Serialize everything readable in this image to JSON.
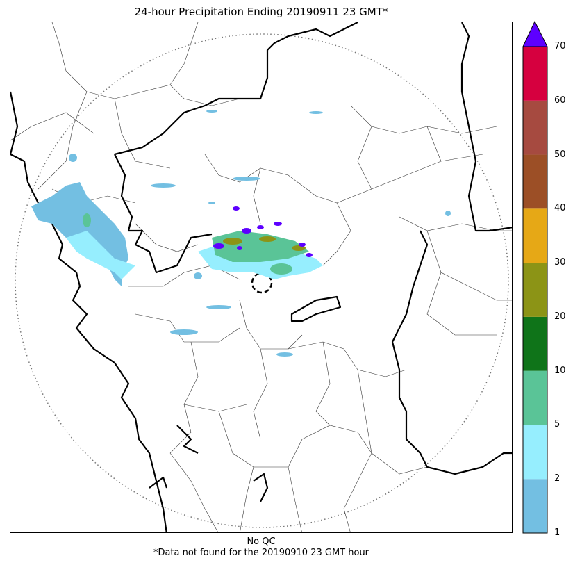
{
  "title": "24-hour Precipitation Ending 20190911 23 GMT*",
  "captions": {
    "qc": "No QC",
    "note": "*Data not found for the 20190910 23 GMT hour"
  },
  "colorbar": {
    "levels": [
      1,
      2,
      5,
      10,
      20,
      30,
      40,
      50,
      60,
      70
    ],
    "tick_labels": [
      "1",
      "2",
      "5",
      "10",
      "20",
      "30",
      "40",
      "50",
      "60",
      "70"
    ],
    "colors": [
      "#73bfe2",
      "#96eefe",
      "#5ac497",
      "#0f7419",
      "#8c9416",
      "#e6a816",
      "#9c4f26",
      "#a64a40",
      "#d6003f"
    ],
    "extend_color": "#5d00ff"
  },
  "map": {
    "range_ring": "dotted",
    "radar_marker": "dashed-circle",
    "precip_colors": {
      "light": "#73bfe2",
      "moderate": "#96eefe",
      "heavy": "#5ac497",
      "intense": "#8c9416",
      "extreme": "#5d00ff"
    }
  }
}
